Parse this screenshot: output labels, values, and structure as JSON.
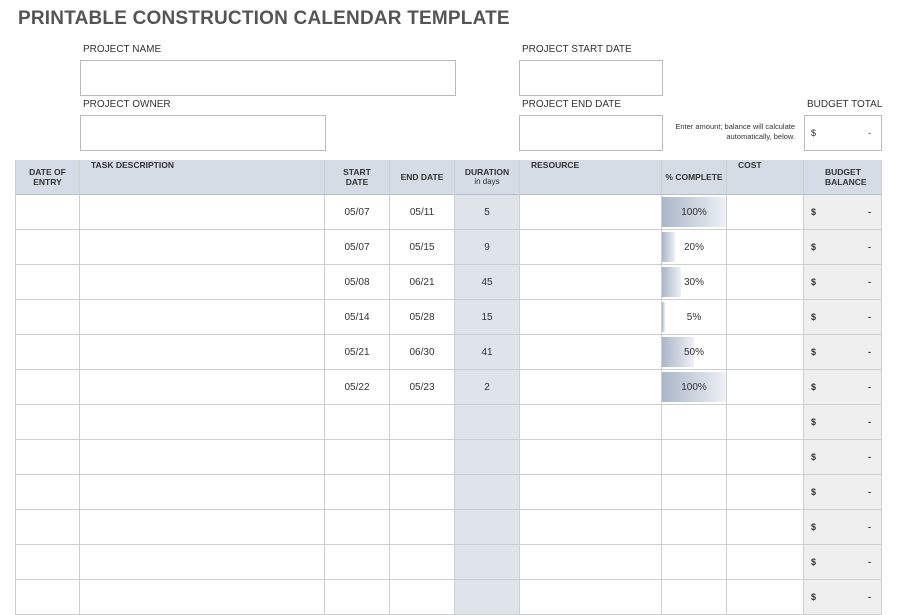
{
  "header": {
    "title": "PRINTABLE CONSTRUCTION CALENDAR TEMPLATE"
  },
  "form": {
    "project_name": "PROJECT NAME",
    "project_start_date": "PROJECT START DATE",
    "project_owner": "PROJECT OWNER",
    "project_end_date": "PROJECT END DATE",
    "note": "Enter amount; balance will calculate automatically, below.",
    "budget_total": "BUDGET TOTAL",
    "budget_total_currency": "$",
    "budget_total_value": "-"
  },
  "table": {
    "headers": [
      "DATE OF ENTRY",
      "TASK DESCRIPTION",
      "START DATE",
      "END DATE",
      "DURATION",
      "RESOURCE",
      "% COMPLETE",
      "COST",
      "BUDGET BALANCE"
    ],
    "duration_unit": "in days",
    "rows": [
      {
        "start": "05/07",
        "end": "05/11",
        "duration": 5,
        "complete": {
          "value": 100,
          "label": "100%"
        },
        "currency": "$",
        "balance": "-"
      },
      {
        "start": "05/07",
        "end": "05/15",
        "duration": 9,
        "complete": {
          "value": 20,
          "label": "20%"
        },
        "currency": "$",
        "balance": "-"
      },
      {
        "start": "05/08",
        "end": "06/21",
        "duration": 45,
        "complete": {
          "value": 30,
          "label": "30%"
        },
        "currency": "$",
        "balance": "-"
      },
      {
        "start": "05/14",
        "end": "05/28",
        "duration": 15,
        "complete": {
          "value": 5,
          "label": "5%"
        },
        "currency": "$",
        "balance": "-"
      },
      {
        "start": "05/21",
        "end": "06/30",
        "duration": 41,
        "complete": {
          "value": 50,
          "label": "50%"
        },
        "currency": "$",
        "balance": "-"
      },
      {
        "start": "05/22",
        "end": "05/23",
        "duration": 2,
        "complete": {
          "value": 100,
          "label": "100%"
        },
        "currency": "$",
        "balance": "-"
      },
      {
        "currency": "$",
        "balance": "-"
      },
      {
        "currency": "$",
        "balance": "-"
      },
      {
        "currency": "$",
        "balance": "-"
      },
      {
        "currency": "$",
        "balance": "-"
      },
      {
        "currency": "$",
        "balance": "-"
      },
      {
        "currency": "$",
        "balance": "-"
      }
    ]
  }
}
